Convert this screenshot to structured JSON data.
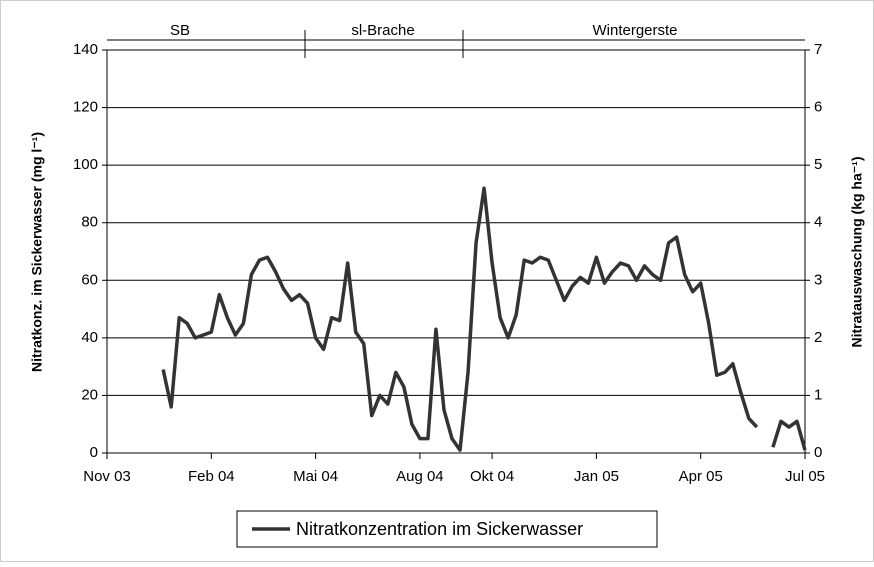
{
  "chart_data": {
    "type": "line",
    "y_label": "Nitratkonz. im Sickerwasser (mg l⁻¹)",
    "y2_label": "Nitratauswaschung (kg ha⁻¹)",
    "phases": [
      "SB",
      "sl-Brache",
      "Wintergerste"
    ],
    "categories": [
      "Nov 03",
      null,
      null,
      null,
      null,
      null,
      null,
      null,
      null,
      null,
      null,
      null,
      null,
      "Feb 04",
      null,
      null,
      null,
      null,
      null,
      null,
      null,
      null,
      null,
      null,
      null,
      null,
      "Mai 04",
      null,
      null,
      null,
      null,
      null,
      null,
      null,
      null,
      null,
      null,
      null,
      null,
      "Aug 04",
      null,
      null,
      null,
      null,
      null,
      null,
      null,
      null,
      "Okt 04",
      null,
      null,
      null,
      null,
      null,
      null,
      null,
      null,
      null,
      null,
      null,
      null,
      "Jan 05",
      null,
      null,
      null,
      null,
      null,
      null,
      null,
      null,
      null,
      null,
      null,
      null,
      "Apr 05",
      null,
      null,
      null,
      null,
      null,
      null,
      null,
      null,
      null,
      null,
      null,
      null,
      "Jul 05"
    ],
    "series": [
      {
        "name": "Nitratkonzentration im Sickerwasser",
        "color": "#333333",
        "values": [
          null,
          null,
          null,
          null,
          null,
          null,
          null,
          29,
          16,
          47,
          45,
          40,
          41,
          42,
          55,
          47,
          41,
          45,
          62,
          67,
          68,
          63,
          57,
          53,
          55,
          52,
          40,
          36,
          47,
          46,
          66,
          42,
          38,
          13,
          20,
          17,
          28,
          23,
          10,
          5,
          5,
          43,
          15,
          5,
          1,
          28,
          73,
          92,
          66,
          47,
          40,
          48,
          67,
          66,
          68,
          67,
          60,
          53,
          58,
          61,
          59,
          68,
          59,
          63,
          66,
          65,
          60,
          65,
          62,
          60,
          73,
          75,
          62,
          56,
          59,
          45,
          27,
          28,
          31,
          21,
          12,
          9,
          null,
          2,
          11,
          9,
          11,
          1
        ]
      }
    ],
    "ylim": [
      0,
      140
    ],
    "yticks": [
      0,
      20,
      40,
      60,
      80,
      100,
      120,
      140
    ],
    "y2lim": [
      0,
      7
    ],
    "y2ticks": [
      0,
      1,
      2,
      3,
      4,
      5,
      6,
      7
    ],
    "grid": true,
    "legend": "bottom"
  }
}
